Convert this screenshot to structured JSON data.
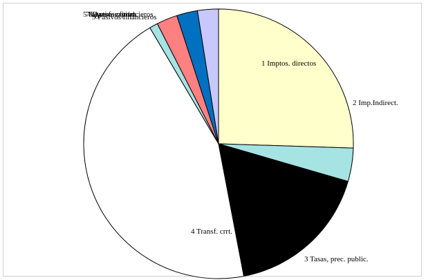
{
  "chart_data": {
    "type": "pie",
    "title": "",
    "start_angle_deg": 90,
    "direction": "clockwise",
    "slices": [
      {
        "label": "1 Imptos. directos",
        "value": 25.5,
        "color": "#FFFFCC"
      },
      {
        "label": "2 Imp.Indirect.",
        "value": 4.0,
        "color": "#A6E3E3"
      },
      {
        "label": "3 Tasas, prec. public.",
        "value": 17.5,
        "color": "#000000"
      },
      {
        "label": "4 Transf.    crrt.",
        "value": 44.5,
        "color": "#FFFFFF"
      },
      {
        "label": "5 Ingresos patrim.",
        "value": 1.0,
        "color": "#A6E3E3"
      },
      {
        "label": "7 Transf. capital",
        "value": 2.5,
        "color": "#FF8080"
      },
      {
        "label": "8 Activos financieros",
        "value": 2.5,
        "color": "#0070C0"
      },
      {
        "label": "9 Pasivos    financieros",
        "value": 2.5,
        "color": "#C8C8FF"
      }
    ]
  }
}
